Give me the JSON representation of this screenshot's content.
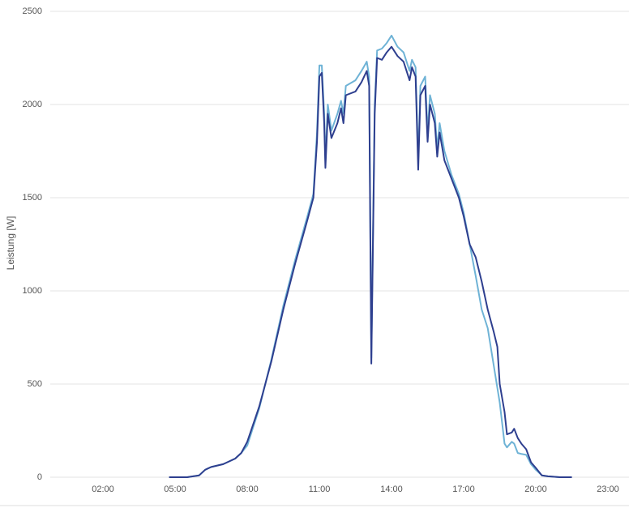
{
  "chart_data": {
    "type": "line",
    "y_label": "Leistung [W]",
    "x": [
      4.75,
      5.5,
      6.0,
      6.25,
      6.5,
      7.0,
      7.5,
      7.75,
      8.0,
      8.5,
      9.0,
      9.5,
      10.0,
      10.5,
      10.75,
      10.9,
      11.0,
      11.1,
      11.2,
      11.25,
      11.35,
      11.5,
      11.75,
      11.9,
      12.0,
      12.1,
      12.5,
      12.75,
      12.97,
      13.07,
      13.16,
      13.3,
      13.4,
      13.6,
      13.8,
      14.0,
      14.25,
      14.5,
      14.75,
      14.85,
      15.0,
      15.11,
      15.2,
      15.4,
      15.5,
      15.6,
      15.8,
      15.9,
      16.0,
      16.2,
      16.5,
      16.8,
      17.0,
      17.25,
      17.5,
      17.75,
      18.0,
      18.25,
      18.4,
      18.5,
      18.7,
      18.8,
      19.0,
      19.1,
      19.25,
      19.4,
      19.6,
      19.8,
      20.0,
      20.25,
      20.5,
      21.0,
      21.5
    ],
    "series": [
      {
        "color": "#6fb3d6",
        "values": [
          0,
          0,
          10,
          40,
          55,
          70,
          100,
          130,
          170,
          370,
          630,
          920,
          1170,
          1400,
          1520,
          1850,
          2210,
          2210,
          1950,
          1700,
          2000,
          1860,
          1950,
          2020,
          1950,
          2100,
          2130,
          2180,
          2230,
          2150,
          640,
          2000,
          2290,
          2300,
          2330,
          2370,
          2310,
          2280,
          2180,
          2240,
          2200,
          1700,
          2100,
          2150,
          1850,
          2050,
          1950,
          1760,
          1900,
          1750,
          1620,
          1520,
          1420,
          1250,
          1080,
          900,
          800,
          600,
          480,
          400,
          180,
          160,
          190,
          180,
          130,
          125,
          120,
          70,
          40,
          10,
          5,
          0,
          0
        ]
      },
      {
        "color": "#2e3f8f",
        "values": [
          0,
          0,
          10,
          40,
          55,
          70,
          100,
          130,
          190,
          380,
          620,
          900,
          1150,
          1380,
          1500,
          1800,
          2150,
          2170,
          1900,
          1660,
          1950,
          1820,
          1900,
          1980,
          1900,
          2050,
          2070,
          2120,
          2180,
          2100,
          610,
          1950,
          2250,
          2240,
          2280,
          2310,
          2260,
          2230,
          2130,
          2200,
          2150,
          1650,
          2050,
          2100,
          1800,
          2000,
          1900,
          1720,
          1850,
          1700,
          1600,
          1500,
          1400,
          1250,
          1180,
          1050,
          900,
          780,
          700,
          500,
          350,
          230,
          240,
          260,
          210,
          180,
          150,
          80,
          50,
          10,
          5,
          0,
          0
        ]
      }
    ],
    "xlim": [
      0,
      24
    ],
    "xticks": [
      {
        "value": 2,
        "label": "02:00"
      },
      {
        "value": 5,
        "label": "05:00"
      },
      {
        "value": 8,
        "label": "08:00"
      },
      {
        "value": 11,
        "label": "11:00"
      },
      {
        "value": 14,
        "label": "14:00"
      },
      {
        "value": 17,
        "label": "17:00"
      },
      {
        "value": 20,
        "label": "20:00"
      },
      {
        "value": 23,
        "label": "23:00"
      }
    ],
    "ylim": [
      0,
      2500
    ],
    "yticks": [
      0,
      500,
      1000,
      1500,
      2000,
      2500
    ],
    "grid": true
  }
}
